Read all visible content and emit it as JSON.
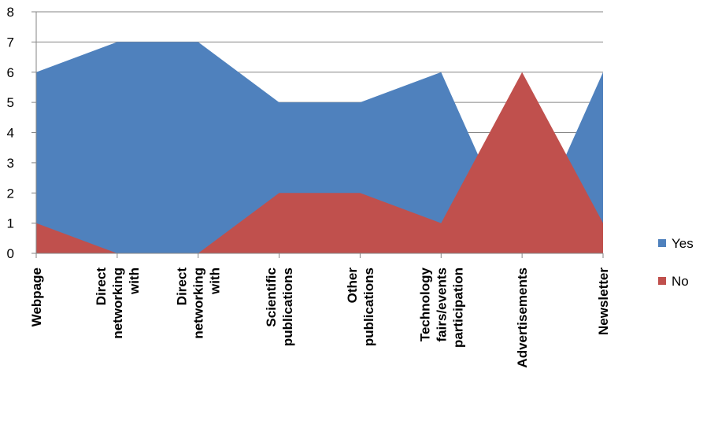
{
  "chart_data": {
    "type": "area",
    "categories": [
      [
        "Webpage"
      ],
      [
        "Direct",
        "networking",
        "with"
      ],
      [
        "Direct",
        "networking",
        "with"
      ],
      [
        "Scientific",
        "publications"
      ],
      [
        "Other",
        "publications"
      ],
      [
        "Technology",
        "fairs/events",
        "participation"
      ],
      [
        "Advertisements"
      ],
      [
        "Newsletter"
      ]
    ],
    "series": [
      {
        "name": "Yes",
        "color": "#4f81bd",
        "values": [
          6,
          7,
          7,
          5,
          5,
          6,
          0,
          6
        ]
      },
      {
        "name": "No",
        "color": "#c0504d",
        "values": [
          1,
          0,
          0,
          2,
          2,
          1,
          6,
          1
        ]
      }
    ],
    "ylim": [
      0,
      8
    ],
    "yticks": [
      "0",
      "1",
      "2",
      "3",
      "4",
      "5",
      "6",
      "7",
      "8"
    ],
    "grid": true,
    "legend_position": "right"
  }
}
